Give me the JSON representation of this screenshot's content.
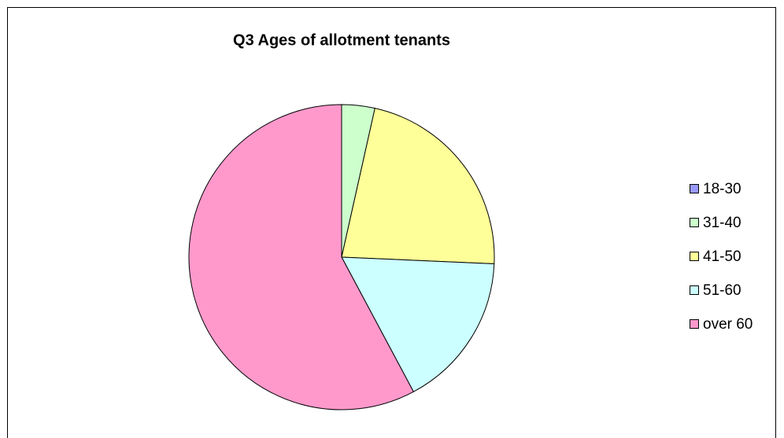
{
  "chart_data": {
    "type": "pie",
    "title": "Q3 Ages of allotment tenants",
    "categories": [
      "18-30",
      "31-40",
      "41-50",
      "51-60",
      "over 60"
    ],
    "values": [
      0,
      3.5,
      22.2,
      16.5,
      57.8
    ],
    "colors": [
      "#9999ff",
      "#ccffcc",
      "#ffff99",
      "#ccffff",
      "#ff99cc"
    ],
    "legend": "right"
  }
}
